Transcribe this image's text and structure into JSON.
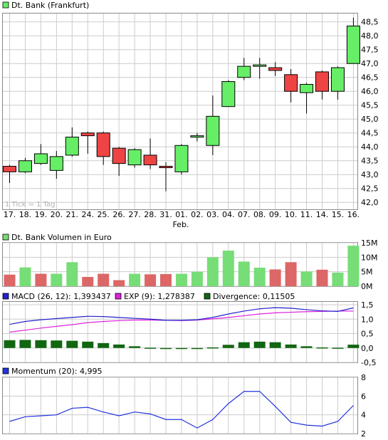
{
  "colors": {
    "up": "#66ee66",
    "down": "#ee4444",
    "vol_up": "#77dd77",
    "vol_down": "#dd6666",
    "macd": "#2222cc",
    "exp": "#dd22dd",
    "divergence": "#116611",
    "momentum": "#2233dd",
    "grid": "#cccccc",
    "frame": "#888888"
  },
  "chart_data": [
    {
      "type": "candlestick",
      "title": "Dt. Bank (Frankfurt)",
      "watermark": "1 Tick = 1 Tag",
      "categories": [
        "17.",
        "18.",
        "19.",
        "20.",
        "21.",
        "24.",
        "25.",
        "26.",
        "27.",
        "28.",
        "31.",
        "01.",
        "02.",
        "03.",
        "04.",
        "07.",
        "08.",
        "09.",
        "10.",
        "11.",
        "14.",
        "15.",
        "16."
      ],
      "month_label": "Feb.",
      "ylim": [
        41.75,
        48.8
      ],
      "yticks": [
        "42,0",
        "42,5",
        "43,0",
        "43,5",
        "44,0",
        "44,5",
        "45,0",
        "45,5",
        "46,0",
        "46,5",
        "47,0",
        "47,5",
        "48,0",
        "48,5"
      ],
      "open": [
        43.3,
        43.1,
        43.4,
        43.15,
        43.7,
        44.5,
        44.5,
        43.95,
        43.35,
        43.7,
        43.3,
        43.1,
        44.35,
        44.05,
        45.45,
        46.5,
        46.9,
        46.85,
        46.6,
        45.95,
        46.7,
        46.0,
        47.0
      ],
      "close": [
        43.1,
        43.5,
        43.75,
        43.65,
        44.35,
        44.4,
        43.65,
        43.4,
        43.9,
        43.35,
        43.25,
        44.05,
        44.4,
        45.1,
        46.35,
        46.9,
        46.95,
        46.75,
        46.0,
        46.25,
        46.0,
        46.85,
        48.35
      ],
      "high": [
        43.35,
        43.6,
        44.1,
        43.85,
        44.7,
        44.55,
        44.55,
        44.0,
        43.95,
        44.3,
        43.45,
        44.1,
        44.5,
        45.85,
        46.4,
        47.2,
        47.2,
        47.05,
        46.8,
        46.3,
        46.75,
        46.9,
        48.65
      ],
      "low": [
        42.7,
        43.05,
        43.35,
        42.85,
        43.65,
        43.75,
        43.35,
        42.95,
        43.25,
        43.2,
        42.4,
        43.0,
        44.2,
        43.7,
        45.45,
        46.4,
        46.45,
        46.55,
        45.6,
        45.2,
        45.7,
        45.7,
        47.0
      ]
    },
    {
      "type": "bar",
      "title": "Dt. Bank Volumen in Euro",
      "categories": [
        "17.",
        "18.",
        "19.",
        "20.",
        "21.",
        "24.",
        "25.",
        "26.",
        "27.",
        "28.",
        "31.",
        "01.",
        "02.",
        "03.",
        "04.",
        "07.",
        "08.",
        "09.",
        "10.",
        "11.",
        "14.",
        "15.",
        "16."
      ],
      "values": [
        4.0,
        6.5,
        4.3,
        4.3,
        8.3,
        3.2,
        4.3,
        2.1,
        4.3,
        4.1,
        4.2,
        4.3,
        5.0,
        10.0,
        12.3,
        8.5,
        6.4,
        5.8,
        8.3,
        5.1,
        5.7,
        4.7,
        14.0
      ],
      "direction": [
        "down",
        "up",
        "down",
        "up",
        "up",
        "down",
        "down",
        "down",
        "up",
        "down",
        "down",
        "up",
        "up",
        "up",
        "up",
        "up",
        "up",
        "down",
        "down",
        "up",
        "down",
        "up",
        "up"
      ],
      "ylim": [
        0,
        15
      ],
      "yticks": [
        "0M",
        "5M",
        "10M",
        "15M"
      ]
    },
    {
      "type": "line",
      "legend": [
        {
          "label": "MACD (26, 12): 1,393437",
          "key": "macd"
        },
        {
          "label": "EXP (9): 1,278387",
          "key": "exp"
        },
        {
          "label": "Divergence: 0,11505",
          "key": "divergence"
        }
      ],
      "categories": [
        "17.",
        "18.",
        "19.",
        "20.",
        "21.",
        "24.",
        "25.",
        "26.",
        "27.",
        "28.",
        "31.",
        "01.",
        "02.",
        "03.",
        "04.",
        "07.",
        "08.",
        "09.",
        "10.",
        "11.",
        "14.",
        "15.",
        "16."
      ],
      "series": [
        {
          "name": "MACD",
          "values": [
            0.82,
            0.92,
            0.98,
            1.02,
            1.06,
            1.1,
            1.09,
            1.06,
            1.03,
            1.0,
            0.96,
            0.96,
            0.98,
            1.06,
            1.18,
            1.28,
            1.36,
            1.4,
            1.38,
            1.33,
            1.29,
            1.27,
            1.39
          ]
        },
        {
          "name": "EXP",
          "values": [
            0.55,
            0.62,
            0.69,
            0.75,
            0.81,
            0.88,
            0.92,
            0.95,
            0.97,
            0.97,
            0.96,
            0.95,
            0.97,
            1.01,
            1.06,
            1.12,
            1.18,
            1.22,
            1.24,
            1.26,
            1.27,
            1.28,
            1.28
          ]
        },
        {
          "name": "Divergence",
          "type": "bar",
          "values": [
            0.27,
            0.28,
            0.27,
            0.26,
            0.25,
            0.22,
            0.17,
            0.12,
            0.06,
            0.01,
            -0.02,
            -0.02,
            -0.01,
            0.02,
            0.11,
            0.2,
            0.22,
            0.2,
            0.12,
            0.06,
            0.02,
            0.01,
            0.115
          ]
        }
      ],
      "ylim": [
        -0.5,
        1.6
      ],
      "yticks": [
        "-0,5",
        "0,0",
        "0,5",
        "1,0",
        "1,5"
      ]
    },
    {
      "type": "line",
      "legend": [
        {
          "label": "Momentum (20): 4,995",
          "key": "momentum"
        }
      ],
      "categories": [
        "17.",
        "18.",
        "19.",
        "20.",
        "21.",
        "24.",
        "25.",
        "26.",
        "27.",
        "28.",
        "31.",
        "01.",
        "02.",
        "03.",
        "04.",
        "07.",
        "08.",
        "09.",
        "10.",
        "11.",
        "14.",
        "15.",
        "16."
      ],
      "series": [
        {
          "name": "Momentum",
          "values": [
            3.3,
            3.8,
            3.9,
            4.0,
            4.7,
            4.8,
            4.3,
            3.9,
            4.3,
            4.1,
            3.5,
            3.5,
            2.6,
            3.5,
            5.2,
            6.5,
            6.5,
            4.9,
            3.2,
            2.9,
            2.8,
            3.3,
            5.0
          ]
        }
      ],
      "ylim": [
        2,
        8
      ],
      "yticks": [
        "2",
        "4",
        "6",
        "8"
      ]
    }
  ]
}
